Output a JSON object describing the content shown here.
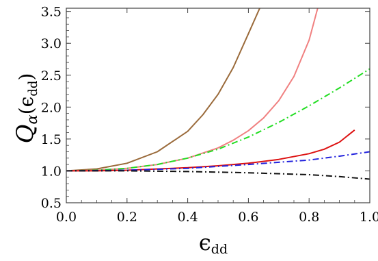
{
  "chart_data": {
    "type": "line",
    "ylabel_main": "Q",
    "ylabel_sub": "α",
    "ylabel_arg": "(ϵ",
    "ylabel_arg_sub": "dd",
    "ylabel_close": ")",
    "xlabel_main": "ϵ",
    "xlabel_sub": "dd",
    "xlim": [
      0.0,
      1.0
    ],
    "ylim": [
      0.5,
      3.55
    ],
    "x_ticks": [
      "0.0",
      "0.2",
      "0.4",
      "0.6",
      "0.8",
      "1.0"
    ],
    "x_tick_values": [
      0.0,
      0.2,
      0.4,
      0.6,
      0.8,
      1.0
    ],
    "y_ticks": [
      "0.5",
      "1.0",
      "1.5",
      "2.0",
      "2.5",
      "3.0",
      "3.5"
    ],
    "y_tick_values": [
      0.5,
      1.0,
      1.5,
      2.0,
      2.5,
      3.0,
      3.5
    ],
    "grid": false,
    "legend": "none",
    "series": [
      {
        "color": "#9a6a3a",
        "style": "solid",
        "x": [
          0.0,
          0.1,
          0.2,
          0.3,
          0.4,
          0.45,
          0.5,
          0.55,
          0.6,
          0.64
        ],
        "y": [
          1.0,
          1.03,
          1.12,
          1.3,
          1.62,
          1.88,
          2.2,
          2.62,
          3.15,
          3.58
        ]
      },
      {
        "color": "#f08080",
        "style": "solid",
        "x": [
          0.0,
          0.1,
          0.2,
          0.3,
          0.4,
          0.5,
          0.55,
          0.6,
          0.65,
          0.7,
          0.75,
          0.8,
          0.83
        ],
        "y": [
          1.0,
          1.01,
          1.04,
          1.1,
          1.2,
          1.36,
          1.48,
          1.63,
          1.83,
          2.1,
          2.48,
          3.05,
          3.58
        ]
      },
      {
        "color": "#22dd22",
        "style": "dashdot",
        "x": [
          0.0,
          0.1,
          0.2,
          0.3,
          0.4,
          0.5,
          0.6,
          0.7,
          0.8,
          0.9,
          1.0
        ],
        "y": [
          1.0,
          1.01,
          1.04,
          1.1,
          1.2,
          1.34,
          1.53,
          1.76,
          2.02,
          2.3,
          2.6
        ]
      },
      {
        "color": "#dd1111",
        "style": "solid",
        "x": [
          0.0,
          0.1,
          0.2,
          0.3,
          0.4,
          0.5,
          0.6,
          0.7,
          0.8,
          0.85,
          0.9,
          0.95
        ],
        "y": [
          1.0,
          1.0,
          1.01,
          1.03,
          1.05,
          1.08,
          1.12,
          1.18,
          1.27,
          1.34,
          1.45,
          1.64
        ]
      },
      {
        "color": "#2222dd",
        "style": "dashdot",
        "x": [
          0.0,
          0.2,
          0.4,
          0.6,
          0.8,
          0.9,
          1.0
        ],
        "y": [
          1.0,
          1.01,
          1.04,
          1.1,
          1.17,
          1.23,
          1.3
        ]
      },
      {
        "color": "#111111",
        "style": "dashdot",
        "x": [
          0.0,
          0.2,
          0.4,
          0.6,
          0.8,
          0.9,
          1.0
        ],
        "y": [
          1.0,
          1.0,
          0.99,
          0.97,
          0.94,
          0.91,
          0.87
        ]
      }
    ]
  }
}
